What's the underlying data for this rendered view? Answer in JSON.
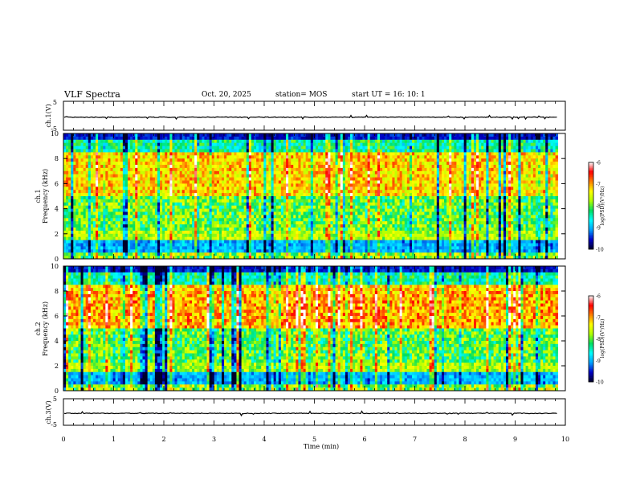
{
  "header": {
    "title": "VLF Spectra",
    "date": "Oct. 20, 2025",
    "station": "station= MOS",
    "start": "start  UT =    16: 10: 1"
  },
  "chart_data": [
    {
      "type": "line",
      "panel": "ch1-waveform",
      "ylabel": "ch.1(V)",
      "ylim": [
        -5,
        5
      ],
      "ytick_labels": [
        "5",
        "-5"
      ],
      "baseline": -0.5,
      "description_values": "flat trace near 0 V"
    },
    {
      "type": "heatmap",
      "panel": "ch1-spectrogram",
      "ylabel_top": "ch.1",
      "ylabel": "Frequency (kHz)",
      "ylim": [
        0,
        10
      ],
      "ytick_labels": [
        "0",
        "2",
        "4",
        "6",
        "8",
        "10"
      ],
      "colorbar_label": "log(PSD)(V²/Hz)",
      "colorbar_ticks": [
        "-6",
        "-7",
        "-8",
        "-9",
        "-10"
      ],
      "colorbar_range": [
        -10,
        -6
      ]
    },
    {
      "type": "heatmap",
      "panel": "ch2-spectrogram",
      "ylabel_top": "ch.2",
      "ylabel": "Frequency (kHz)",
      "ylim": [
        0,
        10
      ],
      "ytick_labels": [
        "0",
        "2",
        "4",
        "6",
        "8",
        "10"
      ],
      "colorbar_label": "log(PSD)(V²/Hz)",
      "colorbar_ticks": [
        "-6",
        "-7",
        "-8",
        "-9",
        "-10"
      ],
      "colorbar_range": [
        -10,
        -6
      ]
    },
    {
      "type": "line",
      "panel": "ch3-waveform",
      "ylabel": "ch.3(V)",
      "ylim": [
        -5,
        5
      ],
      "ytick_labels": [
        "5",
        "-5"
      ],
      "baseline": -0.5,
      "xlabel": "Time (min)",
      "xlim": [
        0,
        10
      ],
      "xtick_labels": [
        "0",
        "1",
        "2",
        "3",
        "4",
        "5",
        "6",
        "7",
        "8",
        "9",
        "10"
      ],
      "data_end_min": 9.85
    }
  ],
  "colors": {
    "frame": "#000000",
    "colormap": [
      "#000028",
      "#0000c8",
      "#00a0ff",
      "#00ffff",
      "#00e060",
      "#b0ff00",
      "#ffff00",
      "#ff8000",
      "#ff0000",
      "#ffffff"
    ]
  }
}
